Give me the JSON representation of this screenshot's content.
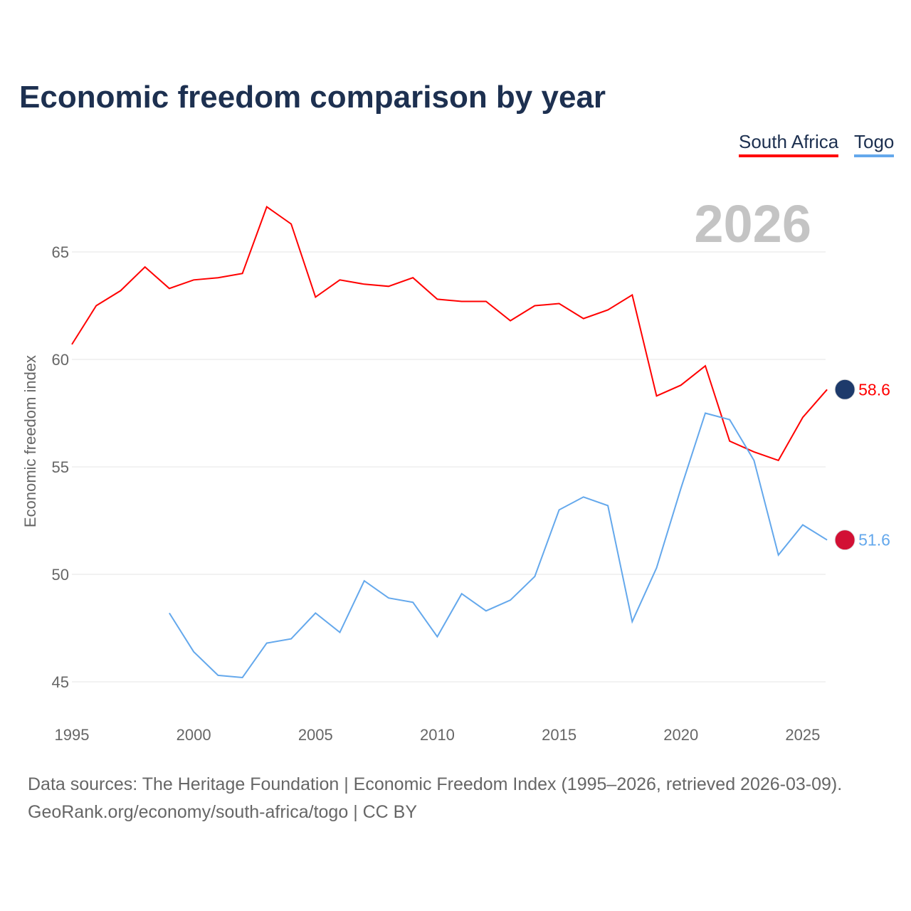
{
  "chart_data": {
    "type": "line",
    "title": "Economic freedom comparison by year",
    "xlabel": "",
    "ylabel": "Economic freedom index",
    "xlim": [
      1995,
      2026
    ],
    "ylim": [
      43.5,
      68
    ],
    "x_ticks": [
      1995,
      2000,
      2005,
      2010,
      2015,
      2020,
      2025
    ],
    "y_ticks": [
      45,
      50,
      55,
      60,
      65
    ],
    "grid": true,
    "legend_position": "top-right",
    "year_watermark": "2026",
    "series": [
      {
        "name": "South Africa",
        "color": "#ff0000",
        "end_label": "58.6",
        "x": [
          1995,
          1996,
          1997,
          1998,
          1999,
          2000,
          2001,
          2002,
          2003,
          2004,
          2005,
          2006,
          2007,
          2008,
          2009,
          2010,
          2011,
          2012,
          2013,
          2014,
          2015,
          2016,
          2017,
          2018,
          2019,
          2020,
          2021,
          2022,
          2023,
          2024,
          2025,
          2026
        ],
        "values": [
          60.7,
          62.5,
          63.2,
          64.3,
          63.3,
          63.7,
          63.8,
          64.0,
          67.1,
          66.3,
          62.9,
          63.7,
          63.5,
          63.4,
          63.8,
          62.8,
          62.7,
          62.7,
          61.8,
          62.5,
          62.6,
          61.9,
          62.3,
          63.0,
          58.3,
          58.8,
          59.7,
          56.2,
          55.7,
          55.3,
          57.3,
          58.6
        ]
      },
      {
        "name": "Togo",
        "color": "#64a8ec",
        "end_label": "51.6",
        "x": [
          1999,
          2000,
          2001,
          2002,
          2003,
          2004,
          2005,
          2006,
          2007,
          2008,
          2009,
          2010,
          2011,
          2012,
          2013,
          2014,
          2015,
          2016,
          2017,
          2018,
          2019,
          2020,
          2021,
          2022,
          2023,
          2024,
          2025,
          2026
        ],
        "values": [
          48.2,
          46.4,
          45.3,
          45.2,
          46.8,
          47.0,
          48.2,
          47.3,
          49.7,
          48.9,
          48.7,
          47.1,
          49.1,
          48.3,
          48.8,
          49.9,
          53.0,
          53.6,
          53.2,
          47.8,
          50.3,
          54.0,
          57.5,
          57.2,
          55.3,
          50.9,
          52.3,
          51.6
        ]
      }
    ]
  },
  "footer": {
    "line1": "Data sources: The Heritage Foundation | Economic Freedom Index (1995–2026, retrieved 2026-03-09).",
    "line2": "GeoRank.org/economy/south-africa/togo | CC BY"
  }
}
